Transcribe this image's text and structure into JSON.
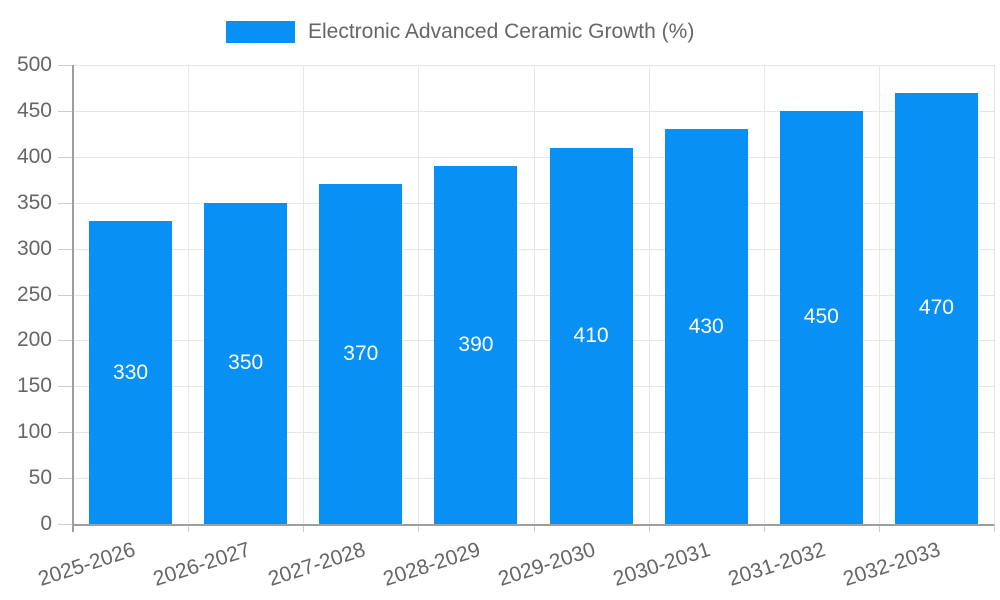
{
  "legend": {
    "label": "Electronic Advanced Ceramic Growth (%)"
  },
  "chart_data": {
    "type": "bar",
    "title": "Electronic Advanced Ceramic Growth (%)",
    "categories": [
      "2025-2026",
      "2026-2027",
      "2027-2028",
      "2028-2029",
      "2029-2030",
      "2030-2031",
      "2031-2032",
      "2032-2033"
    ],
    "values": [
      330,
      350,
      370,
      390,
      410,
      430,
      450,
      470
    ],
    "xlabel": "",
    "ylabel": "",
    "ylim": [
      0,
      500
    ],
    "ytick_step": 50,
    "yticks": [
      "0",
      "50",
      "100",
      "150",
      "200",
      "250",
      "300",
      "350",
      "400",
      "450",
      "500"
    ],
    "grid": true,
    "legend_position": "top",
    "bar_labels_inside": true,
    "x_label_rotation_deg": -18,
    "colors": {
      "bar": "#0990f5",
      "bar_label": "#ffffff",
      "grid": "#e6e6e6",
      "axis_line": "#9e9e9e",
      "tick": "#cccccc",
      "axis_text": "#666666",
      "background": "#ffffff"
    }
  }
}
